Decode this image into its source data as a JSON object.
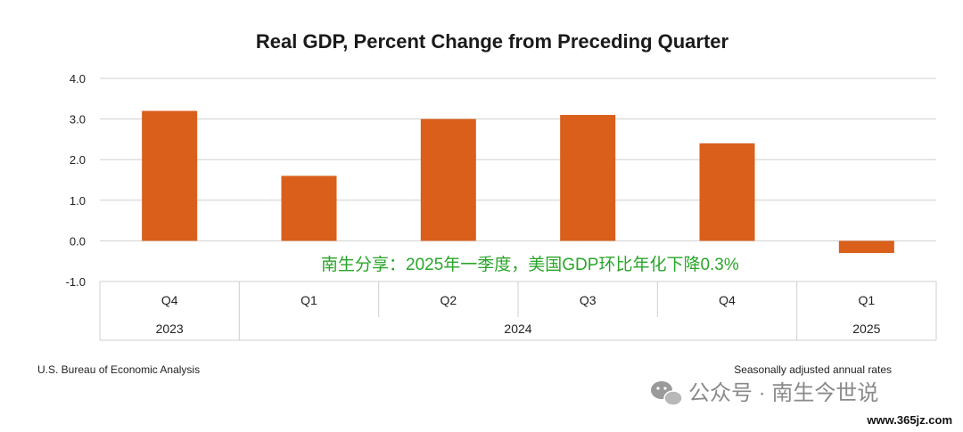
{
  "chart_data": {
    "type": "bar",
    "title": "Real GDP, Percent Change from Preceding Quarter",
    "quarters": [
      "Q4",
      "Q1",
      "Q2",
      "Q3",
      "Q4",
      "Q1"
    ],
    "years": [
      {
        "label": "2023",
        "span": 1
      },
      {
        "label": "2024",
        "span": 4
      },
      {
        "label": "2025",
        "span": 1
      }
    ],
    "values": [
      3.2,
      1.6,
      3.0,
      3.1,
      2.4,
      -0.3
    ],
    "ylim": [
      -1.0,
      4.0
    ],
    "yticks": [
      "4.0",
      "3.0",
      "2.0",
      "1.0",
      "0.0",
      "-1.0"
    ],
    "grid": true,
    "bar_color": "#d95f1b",
    "source": "U.S. Bureau of Economic Analysis",
    "note": "Seasonally adjusted annual rates"
  },
  "overlay_text": "南生分享：2025年一季度，美国GDP环比年化下降0.3%",
  "watermark": {
    "text": "公众号 · 南生今世说",
    "icon": "wechat-icon",
    "url": "www.365jz.com"
  }
}
